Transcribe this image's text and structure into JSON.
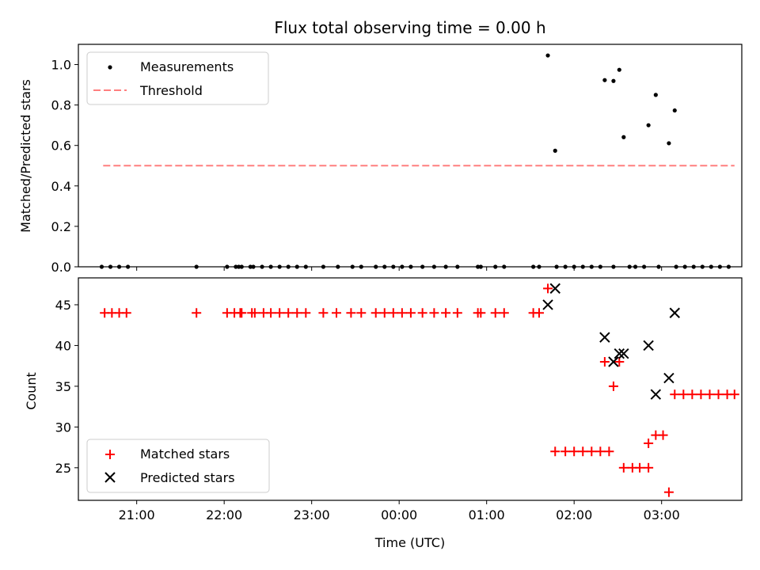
{
  "chart_data": [
    {
      "type": "scatter",
      "title": "Flux total observing time = 0.00 h",
      "xlabel": "",
      "ylabel": "Matched/Predicted stars",
      "xlim": [
        "20:20",
        "03:55"
      ],
      "ylim": [
        0,
        1.1
      ],
      "yticks": [
        0.0,
        0.2,
        0.4,
        0.6,
        0.8,
        1.0
      ],
      "ytick_labels": [
        "0.0",
        "0.2",
        "0.4",
        "0.6",
        "0.8",
        "1.0"
      ],
      "show_x_tick_labels": false,
      "grid": false,
      "legend": {
        "location": "upper-left",
        "entries": [
          "Measurements",
          "Threshold"
        ]
      },
      "series": [
        {
          "name": "Measurements",
          "kind": "scatter",
          "color": "#000000",
          "marker": "dot",
          "points": [
            [
              "20:36",
              0
            ],
            [
              "20:42",
              0
            ],
            [
              "20:48",
              0
            ],
            [
              "20:54",
              0
            ],
            [
              "21:41",
              0
            ],
            [
              "22:02",
              0
            ],
            [
              "22:08",
              0
            ],
            [
              "22:10",
              0
            ],
            [
              "22:12",
              0
            ],
            [
              "22:18",
              0
            ],
            [
              "22:20",
              0
            ],
            [
              "22:26",
              0
            ],
            [
              "22:32",
              0
            ],
            [
              "22:38",
              0
            ],
            [
              "22:44",
              0
            ],
            [
              "22:50",
              0
            ],
            [
              "22:56",
              0
            ],
            [
              "23:08",
              0
            ],
            [
              "23:18",
              0
            ],
            [
              "23:28",
              0
            ],
            [
              "23:34",
              0
            ],
            [
              "23:44",
              0
            ],
            [
              "23:50",
              0
            ],
            [
              "23:56",
              0
            ],
            [
              "00:02",
              0
            ],
            [
              "00:08",
              0
            ],
            [
              "00:16",
              0
            ],
            [
              "00:24",
              0
            ],
            [
              "00:32",
              0
            ],
            [
              "00:40",
              0
            ],
            [
              "00:54",
              0
            ],
            [
              "00:56",
              0
            ],
            [
              "01:06",
              0
            ],
            [
              "01:12",
              0
            ],
            [
              "01:32",
              0
            ],
            [
              "01:36",
              0
            ],
            [
              "01:48",
              0
            ],
            [
              "01:54",
              0
            ],
            [
              "02:00",
              0
            ],
            [
              "02:06",
              0
            ],
            [
              "02:12",
              0
            ],
            [
              "02:18",
              0
            ],
            [
              "02:27",
              0
            ],
            [
              "02:38",
              0
            ],
            [
              "02:42",
              0
            ],
            [
              "02:48",
              0
            ],
            [
              "02:58",
              0
            ],
            [
              "03:10",
              0
            ],
            [
              "03:16",
              0
            ],
            [
              "03:22",
              0
            ],
            [
              "03:28",
              0
            ],
            [
              "03:34",
              0
            ],
            [
              "03:40",
              0
            ],
            [
              "03:46",
              0
            ],
            [
              "01:42",
              1.045
            ],
            [
              "01:47",
              0.574
            ],
            [
              "02:21",
              0.923
            ],
            [
              "02:27",
              0.919
            ],
            [
              "02:31",
              0.974
            ],
            [
              "02:34",
              0.641
            ],
            [
              "02:51",
              0.7
            ],
            [
              "02:56",
              0.85
            ],
            [
              "03:05",
              0.611
            ],
            [
              "03:09",
              0.773
            ]
          ]
        },
        {
          "name": "Threshold",
          "kind": "line",
          "color": "#ff7f7f",
          "dash": "dashed",
          "x": [
            "20:37",
            "03:50"
          ],
          "y": [
            0.5,
            0.5
          ]
        }
      ]
    },
    {
      "type": "scatter",
      "title": "",
      "xlabel": "Time (UTC)",
      "ylabel": "Count",
      "xlim": [
        "20:20",
        "03:55"
      ],
      "ylim": [
        21,
        48.3
      ],
      "yticks": [
        25,
        30,
        35,
        40,
        45
      ],
      "ytick_labels": [
        "25",
        "30",
        "35",
        "40",
        "45"
      ],
      "xticks": [
        "21:00",
        "22:00",
        "23:00",
        "00:00",
        "01:00",
        "02:00",
        "03:00"
      ],
      "xtick_labels": [
        "21:00",
        "22:00",
        "23:00",
        "00:00",
        "01:00",
        "02:00",
        "03:00"
      ],
      "grid": false,
      "legend": {
        "location": "lower-left",
        "entries": [
          "Matched stars",
          "Predicted stars"
        ]
      },
      "series": [
        {
          "name": "Matched stars",
          "kind": "scatter",
          "color": "#ff0000",
          "marker": "plus",
          "points": [
            [
              "20:38",
              44
            ],
            [
              "20:43",
              44
            ],
            [
              "20:48",
              44
            ],
            [
              "20:53",
              44
            ],
            [
              "21:41",
              44
            ],
            [
              "22:02",
              44
            ],
            [
              "22:07",
              44
            ],
            [
              "22:11",
              44
            ],
            [
              "22:12",
              44
            ],
            [
              "22:19",
              44
            ],
            [
              "22:21",
              44
            ],
            [
              "22:27",
              44
            ],
            [
              "22:32",
              44
            ],
            [
              "22:38",
              44
            ],
            [
              "22:44",
              44
            ],
            [
              "22:50",
              44
            ],
            [
              "22:56",
              44
            ],
            [
              "23:08",
              44
            ],
            [
              "23:17",
              44
            ],
            [
              "23:27",
              44
            ],
            [
              "23:34",
              44
            ],
            [
              "23:44",
              44
            ],
            [
              "23:50",
              44
            ],
            [
              "23:56",
              44
            ],
            [
              "00:02",
              44
            ],
            [
              "00:08",
              44
            ],
            [
              "00:16",
              44
            ],
            [
              "00:24",
              44
            ],
            [
              "00:32",
              44
            ],
            [
              "00:40",
              44
            ],
            [
              "00:54",
              44
            ],
            [
              "00:56",
              44
            ],
            [
              "01:06",
              44
            ],
            [
              "01:12",
              44
            ],
            [
              "01:32",
              44
            ],
            [
              "01:36",
              44
            ],
            [
              "01:42",
              47
            ],
            [
              "01:47",
              27
            ],
            [
              "01:54",
              27
            ],
            [
              "02:00",
              27
            ],
            [
              "02:06",
              27
            ],
            [
              "02:12",
              27
            ],
            [
              "02:18",
              27
            ],
            [
              "02:24",
              27
            ],
            [
              "02:21",
              38
            ],
            [
              "02:27",
              35
            ],
            [
              "02:31",
              38
            ],
            [
              "02:34",
              25
            ],
            [
              "02:40",
              25
            ],
            [
              "02:45",
              25
            ],
            [
              "02:51",
              25
            ],
            [
              "02:51",
              28
            ],
            [
              "02:56",
              29
            ],
            [
              "03:01",
              29
            ],
            [
              "03:05",
              22
            ],
            [
              "03:09",
              34
            ],
            [
              "03:15",
              34
            ],
            [
              "03:21",
              34
            ],
            [
              "03:27",
              34
            ],
            [
              "03:33",
              34
            ],
            [
              "03:39",
              34
            ],
            [
              "03:45",
              34
            ],
            [
              "03:50",
              34
            ]
          ]
        },
        {
          "name": "Predicted stars",
          "kind": "scatter",
          "color": "#000000",
          "marker": "x",
          "points": [
            [
              "01:42",
              45
            ],
            [
              "01:47",
              47
            ],
            [
              "02:21",
              41
            ],
            [
              "02:27",
              38
            ],
            [
              "02:31",
              39
            ],
            [
              "02:34",
              39
            ],
            [
              "02:51",
              40
            ],
            [
              "02:56",
              34
            ],
            [
              "03:05",
              36
            ],
            [
              "03:09",
              44
            ]
          ]
        }
      ]
    }
  ]
}
